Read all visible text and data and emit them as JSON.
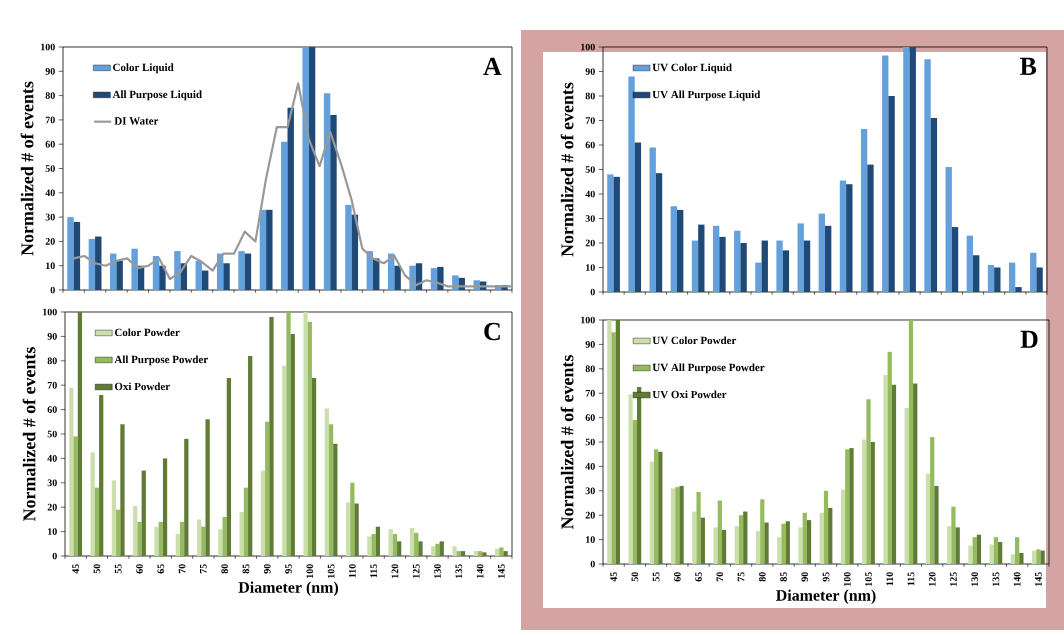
{
  "chart_data": [
    {
      "type": "bar",
      "categories": [
        "45",
        "50",
        "55",
        "60",
        "65",
        "70",
        "75",
        "80",
        "85",
        "90",
        "95",
        "100",
        "105",
        "110",
        "115",
        "120",
        "125",
        "130",
        "135",
        "140",
        "145"
      ],
      "ylim": [
        0,
        100
      ],
      "yticks": [
        0,
        10,
        20,
        30,
        40,
        50,
        60,
        70,
        80,
        90,
        100
      ],
      "ylabel": "Normalized # of events",
      "tick_labels": "y",
      "legend": "top left",
      "annotations": [
        "A"
      ],
      "series": [
        {
          "name": "Color Liquid",
          "color": "#64a0dc",
          "values": [
            30,
            21,
            15,
            17,
            14,
            16,
            12,
            15,
            16,
            33,
            61,
            100,
            81,
            35,
            16,
            15,
            10,
            9,
            6,
            4,
            2
          ]
        },
        {
          "name": "All Purpose Liquid",
          "color": "#1f4a78",
          "values": [
            28,
            22,
            12,
            10,
            10,
            11,
            8,
            11,
            15,
            33,
            75,
            100,
            72,
            31,
            13,
            10,
            11,
            9.5,
            5,
            3.5,
            2
          ]
        }
      ]
    },
    {
      "type": "line",
      "categories": [
        null,
        null,
        null,
        null,
        null,
        null,
        null,
        null,
        null,
        null,
        null,
        null,
        null,
        null,
        null,
        null,
        null,
        null,
        null,
        null,
        null,
        null,
        null,
        null,
        null,
        null,
        null,
        null,
        null,
        null,
        null,
        null,
        null,
        null,
        null,
        null,
        null,
        null,
        null,
        null,
        null,
        null
      ],
      "ylim": [
        0,
        100
      ],
      "tick_labels": false,
      "legend": "top left",
      "series": [
        {
          "name": "DI Water",
          "color": "#999999",
          "values": [
            13,
            14,
            11,
            10,
            12,
            13,
            9,
            10,
            13,
            4.5,
            7.5,
            14,
            11.5,
            8,
            15,
            15,
            24,
            20,
            46,
            67,
            67,
            85,
            62,
            51,
            65,
            52,
            37,
            17,
            13,
            11,
            14,
            6,
            2,
            4,
            3,
            1.5,
            1.5,
            1.5,
            1.5,
            1.5,
            1.5,
            1.5
          ]
        }
      ]
    },
    {
      "type": "bar",
      "categories": [
        "45",
        "50",
        "55",
        "60",
        "65",
        "70",
        "75",
        "80",
        "85",
        "90",
        "95",
        "100",
        "105",
        "110",
        "115",
        "120",
        "125",
        "130",
        "135",
        "140",
        "145"
      ],
      "ylim": [
        0,
        100
      ],
      "yticks": [
        0,
        10,
        20,
        30,
        40,
        50,
        60,
        70,
        80,
        90,
        100
      ],
      "ylabel": "Normalized # of events",
      "tick_labels": "y",
      "legend": "top left",
      "annotations": [
        "B"
      ],
      "series": [
        {
          "name": "UV Color Liquid",
          "color": "#64a0dc",
          "values": [
            48,
            88,
            59,
            35,
            21,
            27,
            25,
            12,
            21,
            28,
            32,
            45.5,
            66.5,
            96.5,
            100,
            95,
            51,
            23,
            11,
            12,
            16
          ]
        },
        {
          "name": "UV All Purpose Liquid",
          "color": "#1f4a78",
          "values": [
            47,
            61,
            48.5,
            33.5,
            27.5,
            22.5,
            20,
            21,
            17,
            21,
            27,
            44,
            52,
            80,
            100,
            71,
            26.5,
            15,
            10,
            2,
            10
          ]
        }
      ]
    },
    {
      "type": "bar",
      "categories": [
        "45",
        "50",
        "55",
        "60",
        "65",
        "70",
        "75",
        "80",
        "85",
        "90",
        "95",
        "100",
        "105",
        "110",
        "115",
        "120",
        "125",
        "130",
        "135",
        "140",
        "145"
      ],
      "ylim": [
        0,
        100
      ],
      "yticks": [
        0,
        10,
        20,
        30,
        40,
        50,
        60,
        70,
        80,
        90,
        100
      ],
      "ylabel": "Normalized # of events",
      "xlabel": "Diameter (nm)",
      "legend": "top left",
      "annotations": [
        "C"
      ],
      "series": [
        {
          "name": "Color Powder",
          "color": "#cadfab",
          "values": [
            69,
            42.5,
            31,
            20.5,
            12,
            9,
            15,
            11,
            18,
            35,
            78,
            100,
            60.5,
            22,
            8,
            11,
            11.5,
            4,
            4,
            2,
            3
          ]
        },
        {
          "name": "All Purpose Powder",
          "color": "#96bb5e",
          "values": [
            49,
            28,
            19,
            14,
            14,
            14,
            12,
            16,
            28,
            55,
            100,
            96,
            54,
            30,
            9,
            9,
            9.5,
            5,
            2,
            2,
            3.5
          ]
        },
        {
          "name": "Oxi Powder",
          "color": "#5f7b36",
          "values": [
            100,
            66,
            54,
            35,
            40,
            48,
            56,
            73,
            82,
            98,
            91,
            73,
            46,
            21.5,
            12,
            6,
            6,
            6,
            2,
            1.5,
            2
          ]
        }
      ]
    },
    {
      "type": "bar",
      "categories": [
        "45",
        "50",
        "55",
        "60",
        "65",
        "70",
        "75",
        "80",
        "85",
        "90",
        "95",
        "100",
        "105",
        "110",
        "115",
        "120",
        "125",
        "130",
        "135",
        "140",
        "145"
      ],
      "ylim": [
        0,
        100
      ],
      "yticks": [
        0,
        10,
        20,
        30,
        40,
        50,
        60,
        70,
        80,
        90,
        100
      ],
      "ylabel": "Normalized # of events",
      "xlabel": "Diameter (nm)",
      "legend": "top left",
      "annotations": [
        "D"
      ],
      "series": [
        {
          "name": "UV Color Powder",
          "color": "#cadfab",
          "values": [
            100,
            69.5,
            42,
            31,
            21.5,
            15,
            15.5,
            13.5,
            11,
            15,
            21,
            30.5,
            51,
            77.5,
            64,
            37,
            15.5,
            7.5,
            8,
            4,
            5.5
          ]
        },
        {
          "name": "UV All Purpose Powder",
          "color": "#96bb5e",
          "values": [
            95,
            59,
            47,
            31.5,
            29.5,
            26,
            20,
            26.5,
            16.5,
            21,
            30,
            47,
            67.5,
            87,
            100,
            52,
            23.5,
            11,
            11,
            11,
            6
          ]
        },
        {
          "name": "UV Oxi Powder",
          "color": "#5f7b36",
          "values": [
            100,
            72.5,
            46,
            32,
            19,
            14,
            21.5,
            17,
            17.5,
            18,
            23,
            47.5,
            50,
            73.5,
            74,
            32,
            15,
            12,
            9,
            4.5,
            5.5
          ]
        }
      ]
    }
  ]
}
